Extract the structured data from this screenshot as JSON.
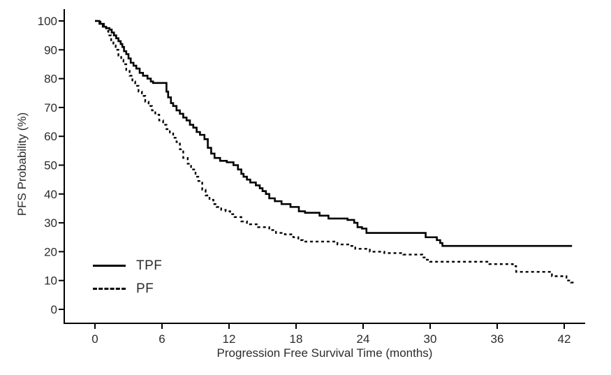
{
  "page": {
    "background": "#ffffff"
  },
  "chart_data": {
    "type": "line",
    "chart_style": "kaplan-meier-step",
    "title": "",
    "xlabel": "Progression Free Survival Time (months)",
    "ylabel": "PFS Probability (%)",
    "xlim": [
      0,
      44
    ],
    "ylim": [
      0,
      100
    ],
    "xticks": [
      0,
      6,
      12,
      18,
      24,
      30,
      36,
      42
    ],
    "yticks": [
      0,
      10,
      20,
      30,
      40,
      50,
      60,
      70,
      80,
      90,
      100
    ],
    "grid": false,
    "legend_position": "inside-lower-left",
    "axis_color": "#000000",
    "text_color": "#2b2b2b",
    "series": [
      {
        "name": "TPF",
        "style": "solid",
        "color": "#000000",
        "points": [
          [
            0,
            100
          ],
          [
            0.4,
            99
          ],
          [
            0.7,
            98
          ],
          [
            1,
            97.5
          ],
          [
            1.3,
            97
          ],
          [
            1.5,
            96
          ],
          [
            1.7,
            95
          ],
          [
            1.9,
            94
          ],
          [
            2.1,
            93
          ],
          [
            2.3,
            92
          ],
          [
            2.45,
            91
          ],
          [
            2.6,
            89.5
          ],
          [
            2.8,
            88.5
          ],
          [
            3,
            87
          ],
          [
            3.2,
            85.5
          ],
          [
            3.45,
            84.5
          ],
          [
            3.7,
            83.5
          ],
          [
            4,
            82
          ],
          [
            4.3,
            81
          ],
          [
            4.7,
            80
          ],
          [
            5,
            79
          ],
          [
            5.2,
            78.5
          ],
          [
            6.4,
            75.5
          ],
          [
            6.55,
            73.5
          ],
          [
            6.8,
            71.5
          ],
          [
            7,
            70.5
          ],
          [
            7.3,
            69
          ],
          [
            7.6,
            67.8
          ],
          [
            7.9,
            66.5
          ],
          [
            8.2,
            65.5
          ],
          [
            8.5,
            64
          ],
          [
            8.8,
            63
          ],
          [
            9.1,
            61.5
          ],
          [
            9.4,
            60.5
          ],
          [
            9.8,
            59
          ],
          [
            10.1,
            56
          ],
          [
            10.4,
            54
          ],
          [
            10.7,
            52.5
          ],
          [
            11.2,
            51.5
          ],
          [
            11.8,
            51
          ],
          [
            12.4,
            50
          ],
          [
            12.8,
            48.5
          ],
          [
            13.1,
            47
          ],
          [
            13.3,
            46
          ],
          [
            13.6,
            45
          ],
          [
            13.9,
            44
          ],
          [
            14.4,
            43
          ],
          [
            14.75,
            42
          ],
          [
            15,
            41
          ],
          [
            15.3,
            40
          ],
          [
            15.6,
            38.5
          ],
          [
            16.1,
            37.5
          ],
          [
            16.7,
            36.5
          ],
          [
            17.5,
            35.5
          ],
          [
            18.25,
            34
          ],
          [
            18.8,
            33.5
          ],
          [
            20.1,
            32.5
          ],
          [
            20.9,
            31.5
          ],
          [
            22.6,
            31
          ],
          [
            23.2,
            30
          ],
          [
            23.5,
            28.5
          ],
          [
            23.9,
            28
          ],
          [
            24.3,
            26.5
          ],
          [
            29.6,
            25
          ],
          [
            30.6,
            24
          ],
          [
            30.9,
            23
          ],
          [
            31.1,
            22
          ],
          [
            42.7,
            22
          ]
        ]
      },
      {
        "name": "PF",
        "style": "dashed",
        "color": "#000000",
        "points": [
          [
            0,
            100
          ],
          [
            0.5,
            99
          ],
          [
            0.8,
            98
          ],
          [
            1,
            96.5
          ],
          [
            1.2,
            95
          ],
          [
            1.45,
            93
          ],
          [
            1.65,
            91.5
          ],
          [
            1.85,
            90
          ],
          [
            2.1,
            88
          ],
          [
            2.35,
            86.5
          ],
          [
            2.55,
            85
          ],
          [
            2.8,
            83
          ],
          [
            3.1,
            81
          ],
          [
            3.35,
            79
          ],
          [
            3.6,
            77.5
          ],
          [
            3.9,
            75.5
          ],
          [
            4.2,
            74
          ],
          [
            4.5,
            72
          ],
          [
            4.8,
            70.5
          ],
          [
            5.1,
            69
          ],
          [
            5.4,
            67.5
          ],
          [
            5.75,
            65.5
          ],
          [
            6.1,
            64
          ],
          [
            6.4,
            62.5
          ],
          [
            6.7,
            61
          ],
          [
            7,
            59.5
          ],
          [
            7.3,
            58
          ],
          [
            7.6,
            55.5
          ],
          [
            7.9,
            52.5
          ],
          [
            8.3,
            50.5
          ],
          [
            8.6,
            48.5
          ],
          [
            9,
            46
          ],
          [
            9.25,
            44.5
          ],
          [
            9.6,
            41.5
          ],
          [
            9.9,
            39.5
          ],
          [
            10.25,
            38
          ],
          [
            10.6,
            36.5
          ],
          [
            10.9,
            35.5
          ],
          [
            11.3,
            34.5
          ],
          [
            11.7,
            34
          ],
          [
            12.1,
            33
          ],
          [
            12.5,
            32
          ],
          [
            13.1,
            30.5
          ],
          [
            13.6,
            29.5
          ],
          [
            14.6,
            28.5
          ],
          [
            15.6,
            27.5
          ],
          [
            16.2,
            26.5
          ],
          [
            17,
            26
          ],
          [
            17.75,
            25
          ],
          [
            18.2,
            24
          ],
          [
            18.6,
            23.5
          ],
          [
            21.7,
            22.5
          ],
          [
            22.75,
            22
          ],
          [
            23.3,
            21
          ],
          [
            24.6,
            20
          ],
          [
            25.9,
            19.5
          ],
          [
            27.6,
            19
          ],
          [
            29.3,
            18
          ],
          [
            29.6,
            17.2
          ],
          [
            30,
            16.5
          ],
          [
            35.3,
            15.7
          ],
          [
            37.4,
            15
          ],
          [
            37.7,
            13
          ],
          [
            40.9,
            11.5
          ],
          [
            42.2,
            10
          ],
          [
            42.6,
            9.3
          ],
          [
            43,
            9.3
          ]
        ]
      }
    ]
  }
}
